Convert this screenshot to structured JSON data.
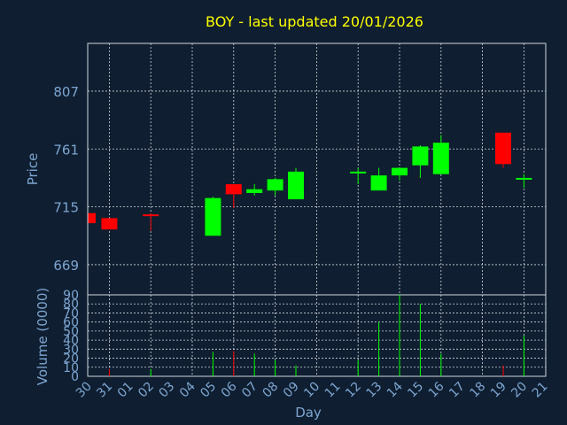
{
  "chart_data": [
    {
      "type": "candlestick",
      "title": "BOY - last updated 20/01/2026",
      "xlabel": "",
      "ylabel": "Price",
      "ylim": [
        645,
        845
      ],
      "y_ticks": [
        669,
        715,
        761,
        807
      ],
      "grid": true,
      "candles": [
        {
          "day": "30",
          "open": 710,
          "close": 702,
          "high": 710,
          "low": 702
        },
        {
          "day": "31",
          "open": 706,
          "close": 697,
          "high": 706,
          "low": 697
        },
        {
          "day": "02",
          "open": 709,
          "close": 708,
          "high": 710,
          "low": 696
        },
        {
          "day": "05",
          "open": 692,
          "close": 722,
          "high": 723,
          "low": 692
        },
        {
          "day": "06",
          "open": 733,
          "close": 725,
          "high": 733,
          "low": 714
        },
        {
          "day": "07",
          "open": 726,
          "close": 729,
          "high": 733,
          "low": 724
        },
        {
          "day": "08",
          "open": 728,
          "close": 737,
          "high": 738,
          "low": 724
        },
        {
          "day": "09",
          "open": 721,
          "close": 743,
          "high": 746,
          "low": 721
        },
        {
          "day": "12",
          "open": 742,
          "close": 743,
          "high": 746,
          "low": 733
        },
        {
          "day": "13",
          "open": 728,
          "close": 740,
          "high": 746,
          "low": 728
        },
        {
          "day": "14",
          "open": 740,
          "close": 746,
          "high": 746,
          "low": 736
        },
        {
          "day": "15",
          "open": 748,
          "close": 763,
          "high": 764,
          "low": 738
        },
        {
          "day": "16",
          "open": 741,
          "close": 766,
          "high": 772,
          "low": 741
        },
        {
          "day": "19",
          "open": 774,
          "close": 749,
          "high": 774,
          "low": 746
        },
        {
          "day": "20",
          "open": 737,
          "close": 738,
          "high": 741,
          "low": 730
        }
      ],
      "colors": {
        "up": "#00ff00",
        "down": "#ff0000"
      }
    },
    {
      "type": "bar",
      "title": "",
      "xlabel": "Day",
      "ylabel": "Volume (0000)",
      "ylim": [
        0,
        90
      ],
      "y_ticks": [
        0,
        10,
        20,
        30,
        40,
        50,
        60,
        70,
        80,
        90
      ],
      "categories": [
        "30",
        "31",
        "01",
        "02",
        "03",
        "04",
        "05",
        "06",
        "07",
        "08",
        "09",
        "10",
        "11",
        "12",
        "13",
        "14",
        "15",
        "16",
        "17",
        "18",
        "19",
        "20",
        "21"
      ],
      "volumes": [
        {
          "day": "31",
          "value": 8,
          "color": "#ff0000"
        },
        {
          "day": "02",
          "value": 8,
          "color": "#00ff00"
        },
        {
          "day": "05",
          "value": 27,
          "color": "#00ff00"
        },
        {
          "day": "06",
          "value": 28,
          "color": "#ff0000"
        },
        {
          "day": "07",
          "value": 25,
          "color": "#00ff00"
        },
        {
          "day": "08",
          "value": 18,
          "color": "#00ff00"
        },
        {
          "day": "09",
          "value": 12,
          "color": "#00ff00"
        },
        {
          "day": "12",
          "value": 18,
          "color": "#00ff00"
        },
        {
          "day": "13",
          "value": 60,
          "color": "#00ff00"
        },
        {
          "day": "14",
          "value": 90,
          "color": "#00ff00"
        },
        {
          "day": "15",
          "value": 80,
          "color": "#00ff00"
        },
        {
          "day": "16",
          "value": 25,
          "color": "#00ff00"
        },
        {
          "day": "19",
          "value": 12,
          "color": "#ff0000"
        },
        {
          "day": "20",
          "value": 45,
          "color": "#00ff00"
        }
      ],
      "grid": true
    }
  ],
  "colors": {
    "background": "#0f1e30",
    "title": "#ffff00",
    "axis_text": "#7da6d2",
    "grid": "#d0d8e0"
  }
}
